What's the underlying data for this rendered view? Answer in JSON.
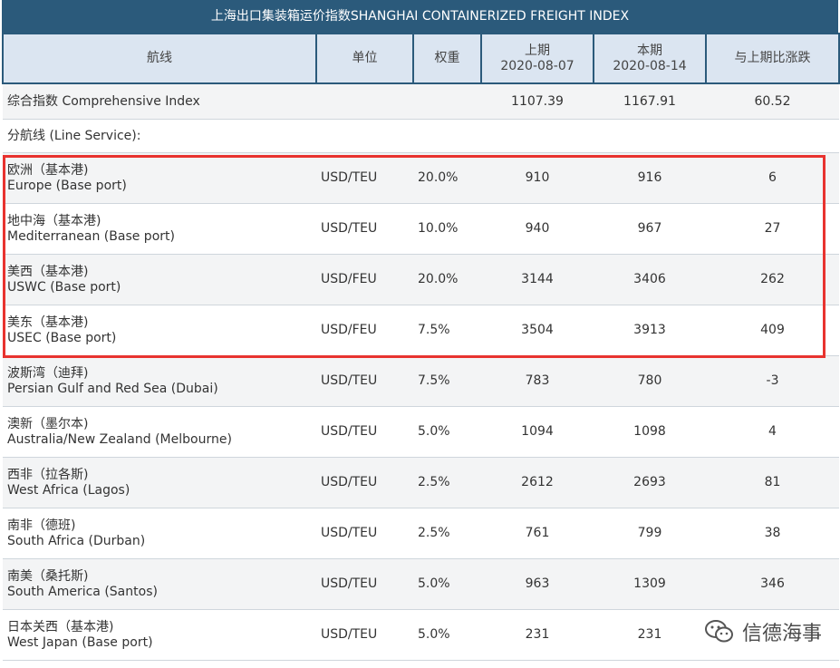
{
  "title": "上海出口集装箱运价指数SHANGHAI CONTAINERIZED FREIGHT INDEX",
  "headers": {
    "route": "航线",
    "unit": "单位",
    "weight": "权重",
    "prev_label": "上期",
    "prev_date": "2020-08-07",
    "curr_label": "本期",
    "curr_date": "2020-08-14",
    "change": "与上期比涨跌"
  },
  "comprehensive": {
    "label": "综合指数 Comprehensive Index",
    "prev": "1107.39",
    "curr": "1167.91",
    "change": "60.52"
  },
  "line_service_label": "分航线 (Line Service):",
  "rows": [
    {
      "cn": "欧洲（基本港)",
      "en": "Europe (Base port)",
      "unit": "USD/TEU",
      "weight": "20.0%",
      "prev": "910",
      "curr": "916",
      "change": "6"
    },
    {
      "cn": "地中海（基本港)",
      "en": "Mediterranean (Base port)",
      "unit": "USD/TEU",
      "weight": "10.0%",
      "prev": "940",
      "curr": "967",
      "change": "27"
    },
    {
      "cn": "美西（基本港)",
      "en": "USWC (Base port)",
      "unit": "USD/FEU",
      "weight": "20.0%",
      "prev": "3144",
      "curr": "3406",
      "change": "262"
    },
    {
      "cn": "美东（基本港)",
      "en": "USEC (Base port)",
      "unit": "USD/FEU",
      "weight": "7.5%",
      "prev": "3504",
      "curr": "3913",
      "change": "409"
    },
    {
      "cn": "波斯湾（迪拜)",
      "en": "Persian Gulf and Red Sea (Dubai)",
      "unit": "USD/TEU",
      "weight": "7.5%",
      "prev": "783",
      "curr": "780",
      "change": "-3"
    },
    {
      "cn": "澳新（墨尔本)",
      "en": "Australia/New Zealand (Melbourne)",
      "unit": "USD/TEU",
      "weight": "5.0%",
      "prev": "1094",
      "curr": "1098",
      "change": "4"
    },
    {
      "cn": "西非（拉各斯)",
      "en": "West Africa (Lagos)",
      "unit": "USD/TEU",
      "weight": "2.5%",
      "prev": "2612",
      "curr": "2693",
      "change": "81"
    },
    {
      "cn": "南非（德班)",
      "en": "South Africa (Durban)",
      "unit": "USD/TEU",
      "weight": "2.5%",
      "prev": "761",
      "curr": "799",
      "change": "38"
    },
    {
      "cn": "南美（桑托斯)",
      "en": "South America (Santos)",
      "unit": "USD/TEU",
      "weight": "5.0%",
      "prev": "963",
      "curr": "1309",
      "change": "346"
    },
    {
      "cn": "日本关西（基本港)",
      "en": "West Japan (Base port)",
      "unit": "USD/TEU",
      "weight": "5.0%",
      "prev": "231",
      "curr": "231",
      "change": ""
    }
  ],
  "watermark": "信德海事",
  "colors": {
    "header_bar": "#2b5a7b",
    "highlight": "#e8332f"
  }
}
